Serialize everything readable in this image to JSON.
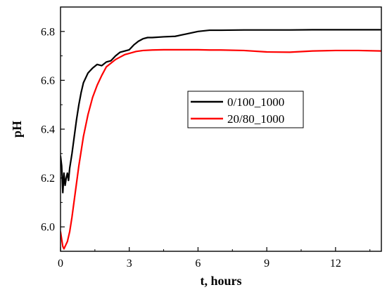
{
  "chart_data": {
    "type": "line",
    "xlabel": "t, hours",
    "ylabel": "pH",
    "xlim": [
      0,
      14
    ],
    "ylim": [
      5.9,
      6.9
    ],
    "xticks": [
      0,
      3,
      6,
      9,
      12
    ],
    "yticks": [
      6.0,
      6.2,
      6.4,
      6.6,
      6.8
    ],
    "grid": false,
    "legend_position": "center-right",
    "series": [
      {
        "name": "0/100_1000",
        "color": "#000000",
        "x": [
          0.0,
          0.05,
          0.1,
          0.15,
          0.2,
          0.25,
          0.3,
          0.35,
          0.4,
          0.45,
          0.5,
          0.6,
          0.7,
          0.8,
          0.9,
          1.0,
          1.2,
          1.4,
          1.6,
          1.8,
          2.0,
          2.2,
          2.4,
          2.6,
          2.8,
          3.0,
          3.2,
          3.4,
          3.6,
          3.8,
          4.0,
          4.5,
          5.0,
          5.5,
          6.0,
          6.5,
          7.0,
          8.0,
          9.0,
          10.0,
          11.0,
          12.0,
          13.0,
          14.0
        ],
        "y": [
          6.29,
          6.25,
          6.14,
          6.22,
          6.17,
          6.2,
          6.22,
          6.19,
          6.24,
          6.27,
          6.3,
          6.37,
          6.44,
          6.5,
          6.55,
          6.59,
          6.63,
          6.65,
          6.665,
          6.66,
          6.675,
          6.68,
          6.7,
          6.715,
          6.72,
          6.725,
          6.745,
          6.76,
          6.77,
          6.775,
          6.775,
          6.778,
          6.78,
          6.79,
          6.8,
          6.805,
          6.805,
          6.806,
          6.806,
          6.806,
          6.807,
          6.807,
          6.807,
          6.807
        ]
      },
      {
        "name": "20/80_1000",
        "color": "#ff0000",
        "x": [
          0.0,
          0.05,
          0.1,
          0.15,
          0.2,
          0.3,
          0.4,
          0.5,
          0.6,
          0.7,
          0.8,
          0.9,
          1.0,
          1.2,
          1.4,
          1.6,
          1.8,
          2.0,
          2.2,
          2.4,
          2.6,
          2.8,
          3.0,
          3.3,
          3.6,
          4.0,
          4.5,
          5.0,
          5.5,
          6.0,
          6.5,
          7.0,
          8.0,
          9.0,
          10.0,
          11.0,
          12.0,
          13.0,
          14.0
        ],
        "y": [
          5.98,
          5.95,
          5.92,
          5.91,
          5.92,
          5.94,
          5.98,
          6.04,
          6.11,
          6.18,
          6.25,
          6.31,
          6.37,
          6.46,
          6.53,
          6.58,
          6.62,
          6.655,
          6.67,
          6.685,
          6.695,
          6.705,
          6.71,
          6.718,
          6.722,
          6.724,
          6.725,
          6.725,
          6.725,
          6.725,
          6.724,
          6.724,
          6.722,
          6.716,
          6.715,
          6.72,
          6.722,
          6.722,
          6.72
        ]
      }
    ]
  }
}
